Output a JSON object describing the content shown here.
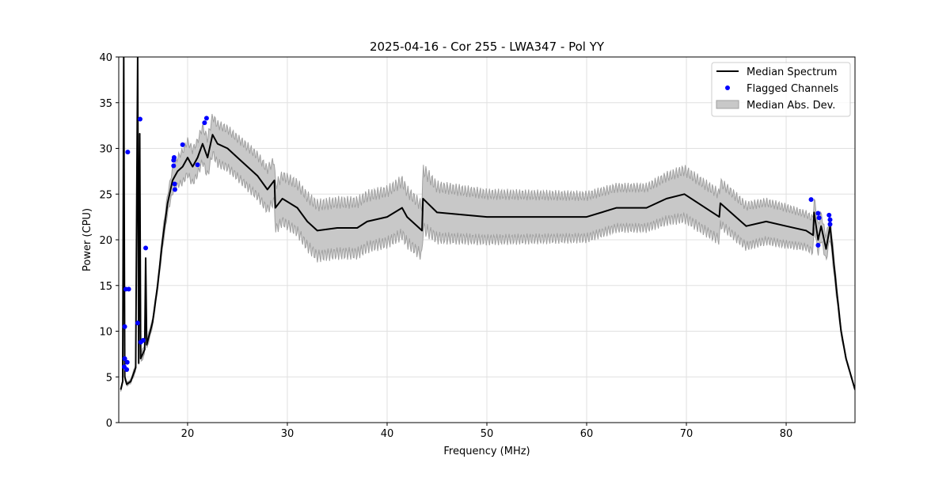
{
  "chart_data": {
    "type": "line",
    "title": "2025-04-16 - Cor 255 - LWA347 - Pol YY",
    "xlabel": "Frequency (MHz)",
    "ylabel": "Power (CPU)",
    "xlim": [
      13.1,
      86.9
    ],
    "ylim": [
      0,
      40
    ],
    "xticks": [
      20,
      30,
      40,
      50,
      60,
      70,
      80
    ],
    "yticks": [
      0,
      5,
      10,
      15,
      20,
      25,
      30,
      35,
      40
    ],
    "grid": true,
    "legend_position": "top-right",
    "legend": [
      "Median Spectrum",
      "Flagged Channels",
      "Median Abs. Dev."
    ],
    "colors": {
      "median": "#000000",
      "flagged": "#0000ff",
      "mad_fill": "#c8c8c8",
      "mad_edge": "#a0a0a0"
    },
    "median_spectrum": {
      "x": [
        13.3,
        13.5,
        13.6,
        13.7,
        13.9,
        14.3,
        14.8,
        15.0,
        15.1,
        15.2,
        15.3,
        15.7,
        15.8,
        15.9,
        16.5,
        17,
        17.5,
        18,
        18.5,
        19,
        19.5,
        20,
        20.5,
        21,
        21.5,
        22,
        22.5,
        23,
        24,
        25,
        26,
        27,
        28,
        28.7,
        28.8,
        29.5,
        31,
        32,
        33,
        35,
        37,
        38,
        40,
        41.5,
        42,
        43.5,
        43.6,
        45,
        50,
        55,
        60,
        63,
        66,
        68,
        69.8,
        73.3,
        73.4,
        76,
        78,
        80,
        82,
        82.7,
        82.8,
        83.2,
        83.5,
        84,
        84.4,
        85,
        85.5,
        86,
        86.9
      ],
      "y": [
        3.6,
        4.5,
        40,
        5,
        4.2,
        4.5,
        6,
        40,
        6.5,
        31.6,
        7,
        8,
        18,
        8.5,
        11,
        15,
        20,
        24,
        26.5,
        27.5,
        28,
        29,
        28,
        29,
        30.5,
        29,
        31.5,
        30.5,
        30,
        29,
        28,
        27,
        25.5,
        26.5,
        23.5,
        24.5,
        23.5,
        22,
        21,
        21.3,
        21.3,
        22,
        22.5,
        23.5,
        22.5,
        21,
        24.5,
        23,
        22.5,
        22.5,
        22.5,
        23.5,
        23.5,
        24.5,
        25,
        22.5,
        24,
        21.5,
        22,
        21.5,
        21,
        20.5,
        23,
        20,
        21.5,
        19,
        21.5,
        15,
        10,
        7,
        3.6
      ],
      "mad": [
        0.2,
        0.2,
        0.5,
        0.3,
        0.2,
        0.2,
        0.4,
        0.5,
        0.5,
        0.5,
        0.5,
        0.5,
        0.5,
        0.5,
        0.4,
        0.5,
        0.8,
        1.0,
        1.3,
        1.5,
        1.7,
        1.8,
        1.8,
        1.8,
        1.9,
        2.0,
        2.0,
        2.1,
        2.1,
        2.1,
        2.2,
        2.2,
        2.2,
        2.2,
        2.4,
        2.5,
        2.6,
        2.7,
        2.8,
        2.8,
        2.8,
        2.8,
        2.8,
        2.9,
        2.8,
        2.7,
        3.2,
        2.8,
        2.5,
        2.4,
        2.3,
        2.2,
        2.2,
        2.4,
        2.6,
        2.5,
        2.3,
        2.2,
        2.1,
        2.0,
        1.8,
        1.8,
        1.6,
        1.5,
        1.4,
        1.3,
        1.2,
        0.8,
        0.4,
        0.2,
        0.1
      ]
    },
    "flagged_channels": {
      "x": [
        14.0,
        13.7,
        13.7,
        13.65,
        13.9,
        13.95,
        13.8,
        14.1,
        15.0,
        15.24,
        15.3,
        15.55,
        15.8,
        18.6,
        18.65,
        18.6,
        18.7,
        18.73,
        19.5,
        21.0,
        21.7,
        21.9,
        82.5,
        83.2,
        83.3,
        83.2,
        84.3,
        84.4,
        84.4
      ],
      "y": [
        29.6,
        10.5,
        7.0,
        6.1,
        5.8,
        6.6,
        14.6,
        14.6,
        10.9,
        33.2,
        8.8,
        9.0,
        19.1,
        28.7,
        29.0,
        28.1,
        26.1,
        25.5,
        30.4,
        28.2,
        32.8,
        33.3,
        24.4,
        22.9,
        22.4,
        19.4,
        22.7,
        22.2,
        21.7
      ]
    }
  }
}
